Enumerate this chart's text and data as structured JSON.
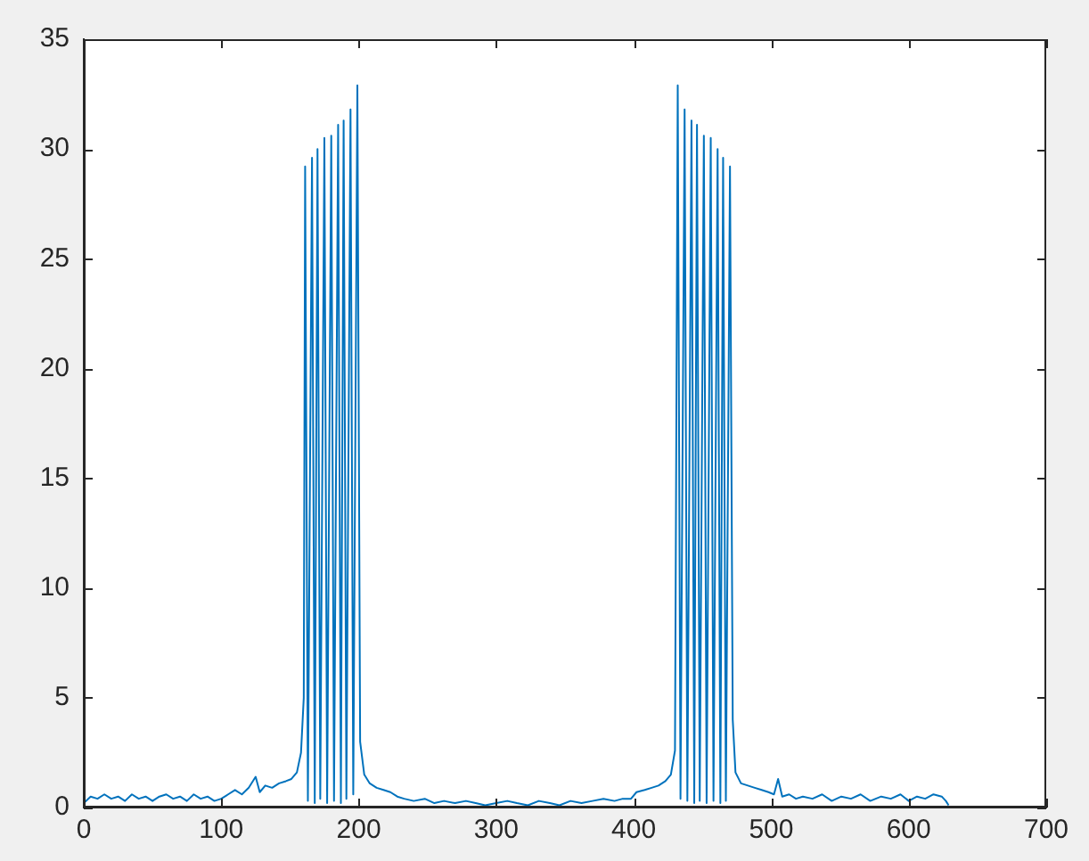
{
  "chart_data": {
    "type": "line",
    "xlim": [
      0,
      700
    ],
    "ylim": [
      0,
      35
    ],
    "xticks": [
      0,
      100,
      200,
      300,
      400,
      500,
      600,
      700
    ],
    "yticks": [
      0,
      5,
      10,
      15,
      20,
      25,
      30,
      35
    ],
    "grid": false,
    "legend": false,
    "marker": "none",
    "line_style": "solid",
    "x": [
      0,
      5,
      10,
      15,
      20,
      25,
      30,
      35,
      40,
      45,
      50,
      55,
      60,
      65,
      70,
      75,
      80,
      85,
      90,
      95,
      100,
      105,
      110,
      115,
      120,
      125,
      128,
      132,
      137,
      142,
      147,
      151,
      155,
      158,
      160,
      161,
      163,
      166,
      168,
      170,
      172,
      175,
      177,
      180,
      182,
      185,
      187,
      189,
      191,
      194,
      196,
      199,
      201,
      204,
      208,
      213,
      218,
      223,
      228,
      233,
      240,
      248,
      255,
      262,
      270,
      278,
      285,
      292,
      300,
      308,
      315,
      323,
      331,
      339,
      346,
      354,
      362,
      370,
      378,
      386,
      392,
      398,
      402,
      408,
      413,
      418,
      423,
      427,
      430,
      432,
      434,
      437,
      439,
      442,
      444,
      446,
      448,
      451,
      453,
      456,
      458,
      461,
      463,
      465,
      467,
      470,
      472,
      474,
      478,
      483,
      488,
      493,
      498,
      502,
      505,
      508,
      513,
      518,
      523,
      530,
      537,
      544,
      551,
      558,
      565,
      572,
      580,
      587,
      594,
      600,
      606,
      612,
      618,
      624,
      627,
      629
    ],
    "series": [
      {
        "color": "#0072bd",
        "values": [
          0.2,
          0.5,
          0.4,
          0.6,
          0.4,
          0.5,
          0.3,
          0.6,
          0.4,
          0.5,
          0.3,
          0.5,
          0.6,
          0.4,
          0.5,
          0.3,
          0.6,
          0.4,
          0.5,
          0.3,
          0.4,
          0.6,
          0.8,
          0.6,
          0.9,
          1.4,
          0.7,
          1.0,
          0.9,
          1.1,
          1.2,
          1.3,
          1.6,
          2.5,
          5,
          29.2,
          0.3,
          29.6,
          0.2,
          30.0,
          0.4,
          30.5,
          0.2,
          30.6,
          0.3,
          31.1,
          0.2,
          31.3,
          0.4,
          31.8,
          0.6,
          32.9,
          3,
          1.5,
          1.1,
          0.9,
          0.8,
          0.7,
          0.5,
          0.4,
          0.3,
          0.4,
          0.2,
          0.3,
          0.2,
          0.3,
          0.2,
          0.1,
          0.2,
          0.3,
          0.2,
          0.1,
          0.3,
          0.2,
          0.1,
          0.3,
          0.2,
          0.3,
          0.4,
          0.3,
          0.4,
          0.4,
          0.7,
          0.8,
          0.9,
          1.0,
          1.2,
          1.5,
          2.6,
          32.9,
          0.4,
          31.8,
          0.3,
          31.3,
          0.2,
          31.1,
          0.3,
          30.6,
          0.2,
          30.5,
          0.3,
          30.0,
          0.2,
          29.6,
          0.3,
          29.2,
          4,
          1.6,
          1.1,
          1.0,
          0.9,
          0.8,
          0.7,
          0.6,
          1.3,
          0.5,
          0.6,
          0.4,
          0.5,
          0.4,
          0.6,
          0.3,
          0.5,
          0.4,
          0.6,
          0.3,
          0.5,
          0.4,
          0.6,
          0.3,
          0.5,
          0.4,
          0.6,
          0.5,
          0.3,
          0.1
        ]
      }
    ]
  }
}
